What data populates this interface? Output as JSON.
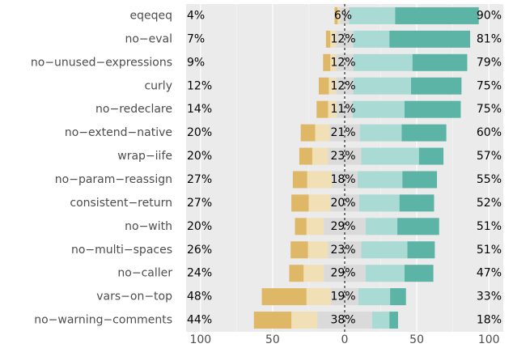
{
  "chart_data": {
    "type": "diverging_bar",
    "categories": [
      "eqeqeq",
      "no−eval",
      "no−unused−expressions",
      "curly",
      "no−redeclare",
      "no−extend−native",
      "wrap−iife",
      "no−param−reassign",
      "consistent−return",
      "no−with",
      "no−multi−spaces",
      "no−caller",
      "vars−on−top",
      "no−warning−comments"
    ],
    "series": [
      {
        "color": "#dfb867",
        "values": [
          2,
          3,
          5,
          7,
          8,
          10,
          9,
          10,
          12,
          8,
          12,
          10,
          31,
          26
        ]
      },
      {
        "color": "#f1dfb6",
        "values": [
          2,
          4,
          4,
          5,
          6,
          10,
          11,
          17,
          15,
          12,
          14,
          14,
          17,
          18
        ]
      },
      {
        "color": "#dadada",
        "values": [
          6,
          12,
          12,
          12,
          11,
          21,
          23,
          18,
          20,
          29,
          23,
          29,
          19,
          38
        ]
      },
      {
        "color": "#a9dbd4",
        "values": [
          32,
          25,
          41,
          40,
          36,
          29,
          40,
          31,
          28,
          22,
          32,
          27,
          22,
          12
        ]
      },
      {
        "color": "#5bb4a5",
        "values": [
          58,
          56,
          38,
          35,
          39,
          31,
          17,
          24,
          24,
          29,
          19,
          20,
          11,
          6
        ]
      }
    ],
    "left_labels": [
      "4%",
      "7%",
      "9%",
      "12%",
      "14%",
      "20%",
      "20%",
      "27%",
      "27%",
      "20%",
      "26%",
      "24%",
      "48%",
      "44%"
    ],
    "neutral_labels": [
      "6%",
      "12%",
      "12%",
      "12%",
      "11%",
      "21%",
      "23%",
      "18%",
      "20%",
      "29%",
      "23%",
      "29%",
      "19%",
      "38%"
    ],
    "right_labels": [
      "90%",
      "81%",
      "79%",
      "75%",
      "75%",
      "60%",
      "57%",
      "55%",
      "52%",
      "51%",
      "51%",
      "47%",
      "33%",
      "18%"
    ],
    "xlim": [
      -110,
      110
    ],
    "xticks": [
      {
        "value": -100,
        "label": "100"
      },
      {
        "value": -50,
        "label": "50"
      },
      0,
      50,
      100
    ],
    "minor_xticks": [
      -75,
      -25,
      25,
      75
    ],
    "grid": true
  }
}
